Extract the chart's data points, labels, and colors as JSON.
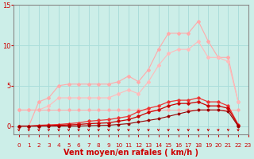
{
  "xlabel": "Vent moyen/en rafales ( km/h )",
  "xlim": [
    -0.5,
    23
  ],
  "ylim": [
    -1,
    15
  ],
  "yticks": [
    0,
    5,
    10,
    15
  ],
  "xticks": [
    0,
    1,
    2,
    3,
    4,
    5,
    6,
    7,
    8,
    9,
    10,
    11,
    12,
    13,
    14,
    15,
    16,
    17,
    18,
    19,
    20,
    21,
    22,
    23
  ],
  "bg_color": "#cceee8",
  "grid_color": "#aaddda",
  "arrow_color": "#cc0000",
  "xlabel_color": "#cc0000",
  "tick_color": "#cc0000",
  "xlabel_fontsize": 7,
  "tick_fontsize": 6,
  "lines": [
    {
      "x": [
        0,
        1,
        2,
        3,
        4,
        5,
        6,
        7,
        8,
        9,
        10,
        11,
        12,
        13,
        14,
        15,
        16,
        17,
        18,
        19,
        20,
        21,
        22
      ],
      "y": [
        0,
        0,
        3,
        3.5,
        5,
        5.2,
        5.2,
        5.2,
        5.2,
        5.2,
        5.5,
        6.2,
        5.5,
        7.0,
        9.5,
        11.5,
        11.5,
        11.5,
        13.0,
        10.5,
        8.5,
        8.5,
        3.0
      ],
      "color": "#ffaaaa",
      "lw": 0.8,
      "ms": 2.0
    },
    {
      "x": [
        0,
        1,
        2,
        3,
        4,
        5,
        6,
        7,
        8,
        9,
        10,
        11,
        12,
        13,
        14,
        15,
        16,
        17,
        18,
        19,
        20,
        21,
        22
      ],
      "y": [
        2,
        2,
        2,
        2.5,
        3.5,
        3.5,
        3.5,
        3.5,
        3.5,
        3.5,
        4.0,
        4.5,
        4.0,
        5.5,
        7.5,
        9.0,
        9.5,
        9.5,
        10.5,
        8.5,
        8.5,
        8.0,
        3.0
      ],
      "color": "#ffbbbb",
      "lw": 0.8,
      "ms": 2.0
    },
    {
      "x": [
        0,
        1,
        2,
        3,
        4,
        5,
        6,
        7,
        8,
        9,
        10,
        11,
        12,
        13,
        14,
        15,
        16,
        17,
        18,
        19,
        20,
        21,
        22
      ],
      "y": [
        2,
        2,
        2,
        2,
        2,
        2,
        2,
        2,
        2,
        2,
        2,
        2,
        2,
        2,
        2,
        2,
        2,
        2,
        2,
        2,
        2,
        2,
        2
      ],
      "color": "#ffaaaa",
      "lw": 0.7,
      "ms": 1.8
    },
    {
      "x": [
        0,
        1,
        2,
        3,
        4,
        5,
        6,
        7,
        8,
        9,
        10,
        11,
        12,
        13,
        14,
        15,
        16,
        17,
        18,
        19,
        20,
        21,
        22
      ],
      "y": [
        0,
        0,
        0.1,
        0.15,
        0.2,
        0.3,
        0.4,
        0.6,
        0.7,
        0.8,
        1.0,
        1.2,
        1.8,
        2.2,
        2.5,
        3.0,
        3.2,
        3.2,
        3.5,
        3.0,
        3.0,
        2.5,
        0.2
      ],
      "color": "#ee3333",
      "lw": 0.9,
      "ms": 1.8
    },
    {
      "x": [
        0,
        1,
        2,
        3,
        4,
        5,
        6,
        7,
        8,
        9,
        10,
        11,
        12,
        13,
        14,
        15,
        16,
        17,
        18,
        19,
        20,
        21,
        22
      ],
      "y": [
        0,
        0,
        0,
        0.05,
        0.1,
        0.15,
        0.2,
        0.3,
        0.35,
        0.4,
        0.6,
        0.8,
        1.2,
        1.7,
        2.0,
        2.5,
        2.8,
        2.8,
        3.0,
        2.5,
        2.5,
        2.2,
        0.1
      ],
      "color": "#cc0000",
      "lw": 0.9,
      "ms": 1.8
    },
    {
      "x": [
        0,
        1,
        2,
        3,
        4,
        5,
        6,
        7,
        8,
        9,
        10,
        11,
        12,
        13,
        14,
        15,
        16,
        17,
        18,
        19,
        20,
        21,
        22
      ],
      "y": [
        0,
        0,
        0,
        0,
        0,
        0,
        0,
        0.05,
        0.08,
        0.1,
        0.2,
        0.3,
        0.5,
        0.7,
        0.9,
        1.2,
        1.5,
        1.8,
        2.0,
        2.0,
        2.0,
        1.8,
        0.0
      ],
      "color": "#990000",
      "lw": 0.8,
      "ms": 1.5
    }
  ]
}
